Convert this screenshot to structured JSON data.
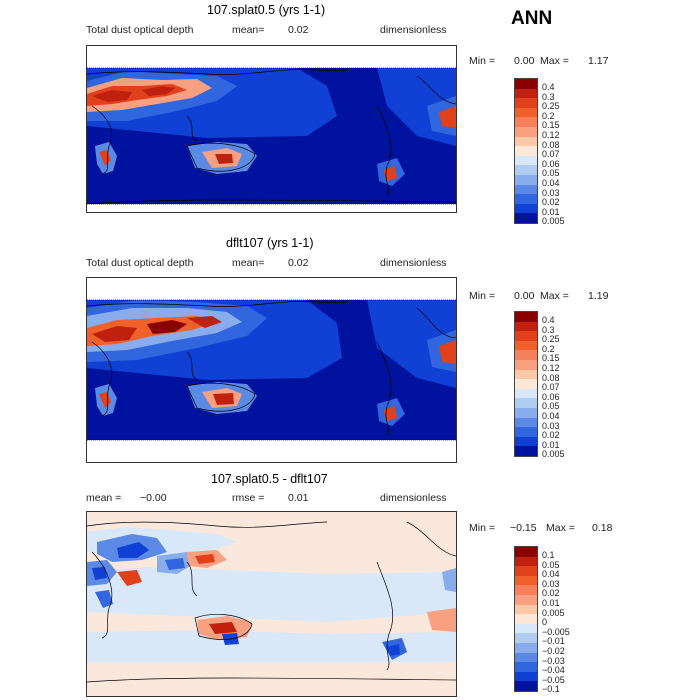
{
  "chart_data": [
    {
      "type": "heatmap",
      "title": "107.splat0.5 (yrs 1-1)",
      "field_label": "Total dust optical depth",
      "mean_label": "mean=",
      "mean_value": "0.02",
      "units": "dimensionless",
      "min_label": "Min =",
      "min_value": "0.00",
      "max_label": "Max =",
      "max_value": "1.17",
      "colorbar_levels": [
        "0.4",
        "0.3",
        "0.25",
        "0.2",
        "0.15",
        "0.12",
        "0.08",
        "0.07",
        "0.06",
        "0.05",
        "0.04",
        "0.03",
        "0.02",
        "0.01",
        "0.005"
      ],
      "colorbar_colors": [
        "#8b0000",
        "#c0200e",
        "#e0401a",
        "#f0602a",
        "#f5805a",
        "#f8a080",
        "#fbc8a8",
        "#fde8d8",
        "#d8e8f8",
        "#b0ccf0",
        "#88acec",
        "#5a8ae6",
        "#3266de",
        "#1040d4",
        "#00129e"
      ]
    },
    {
      "type": "heatmap",
      "title": "dflt107 (yrs 1-1)",
      "field_label": "Total dust optical depth",
      "mean_label": "mean=",
      "mean_value": "0.02",
      "units": "dimensionless",
      "min_label": "Min =",
      "min_value": "0.00",
      "max_label": "Max =",
      "max_value": "1.19",
      "colorbar_levels": [
        "0.4",
        "0.3",
        "0.25",
        "0.2",
        "0.15",
        "0.12",
        "0.08",
        "0.07",
        "0.06",
        "0.05",
        "0.04",
        "0.03",
        "0.02",
        "0.01",
        "0.005"
      ],
      "colorbar_colors": [
        "#8b0000",
        "#c0200e",
        "#e0401a",
        "#f0602a",
        "#f5805a",
        "#f8a080",
        "#fbc8a8",
        "#fde8d8",
        "#d8e8f8",
        "#b0ccf0",
        "#88acec",
        "#5a8ae6",
        "#3266de",
        "#1040d4",
        "#00129e"
      ]
    },
    {
      "type": "heatmap",
      "title": "107.splat0.5 - dflt107",
      "mean_label": "mean =",
      "mean_value": "−0.00",
      "rmse_label": "rmse =",
      "rmse_value": "0.01",
      "units": "dimensionless",
      "min_label": "Min =",
      "min_value": "−0.15",
      "max_label": "Max =",
      "max_value": "0.18",
      "colorbar_levels": [
        "0.1",
        "0.05",
        "0.04",
        "0.03",
        "0.02",
        "0.01",
        "0.005",
        "0",
        "−0.005",
        "−0.01",
        "−0.02",
        "−0.03",
        "−0.04",
        "−0.05",
        "−0.1"
      ],
      "colorbar_colors": [
        "#8b0000",
        "#c0200e",
        "#e0401a",
        "#f0602a",
        "#f5805a",
        "#f8a080",
        "#fbc8a8",
        "#fde8d8",
        "#d8e8f8",
        "#b0ccf0",
        "#88acec",
        "#5a8ae6",
        "#3266de",
        "#1040d4",
        "#00129e"
      ]
    }
  ],
  "season": "ANN",
  "colors": {
    "background_low": "#00129e",
    "high_dust": "#c0200e",
    "diff_neutral": "#fbe8dc"
  }
}
